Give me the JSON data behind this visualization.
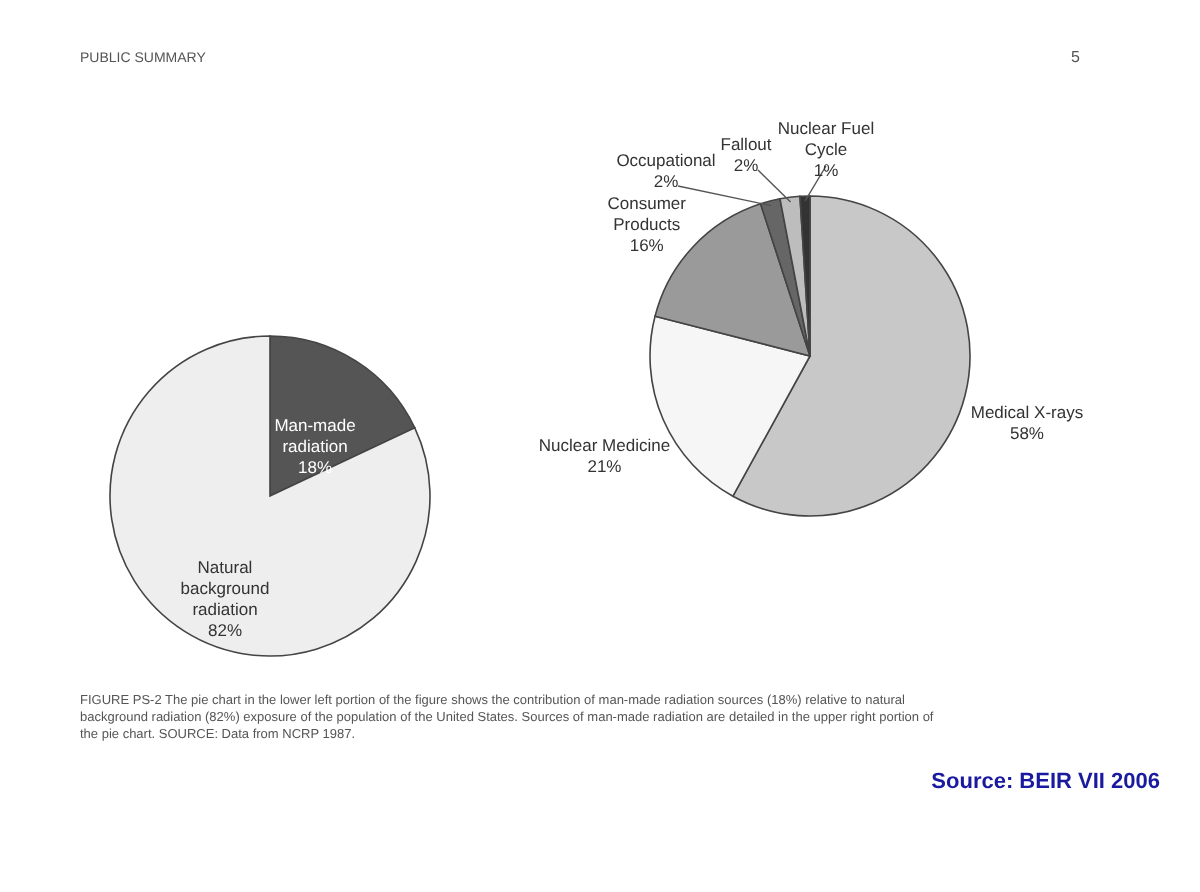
{
  "chart_data": [
    {
      "type": "pie",
      "categories": [
        "Man-made radiation",
        "Natural background radiation"
      ],
      "values": [
        18,
        82
      ],
      "colors": [
        "#555555",
        "#eeeeee"
      ],
      "value_labels": [
        "18%",
        "82%"
      ],
      "annotations": [
        "PUBLIC SUMMARY",
        "5"
      ]
    },
    {
      "type": "pie",
      "categories": [
        "Medical X-rays",
        "Nuclear Medicine",
        "Consumer Products",
        "Occupational",
        "Fallout",
        "Nuclear Fuel Cycle"
      ],
      "values": [
        58,
        21,
        16,
        2,
        2,
        1
      ],
      "colors": [
        "#c8c8c8",
        "#f6f6f6",
        "#9a9a9a",
        "#666666",
        "#bdbdbd",
        "#333333"
      ],
      "value_labels": [
        "58%",
        "21%",
        "16%",
        "2%",
        "2%",
        "1%"
      ],
      "annotations": [
        "FIGURE PS-2 The pie chart in the lower left portion of the figure shows the contribution of man-made radiation sources (18%) relative to natural background radiation (82%) exposure of the population of the United States. Sources of man-made radiation are detailed in the upper right portion of the pie chart. SOURCE: Data from NCRP 1987.",
        "Source: BEIR VII 2006"
      ]
    }
  ]
}
